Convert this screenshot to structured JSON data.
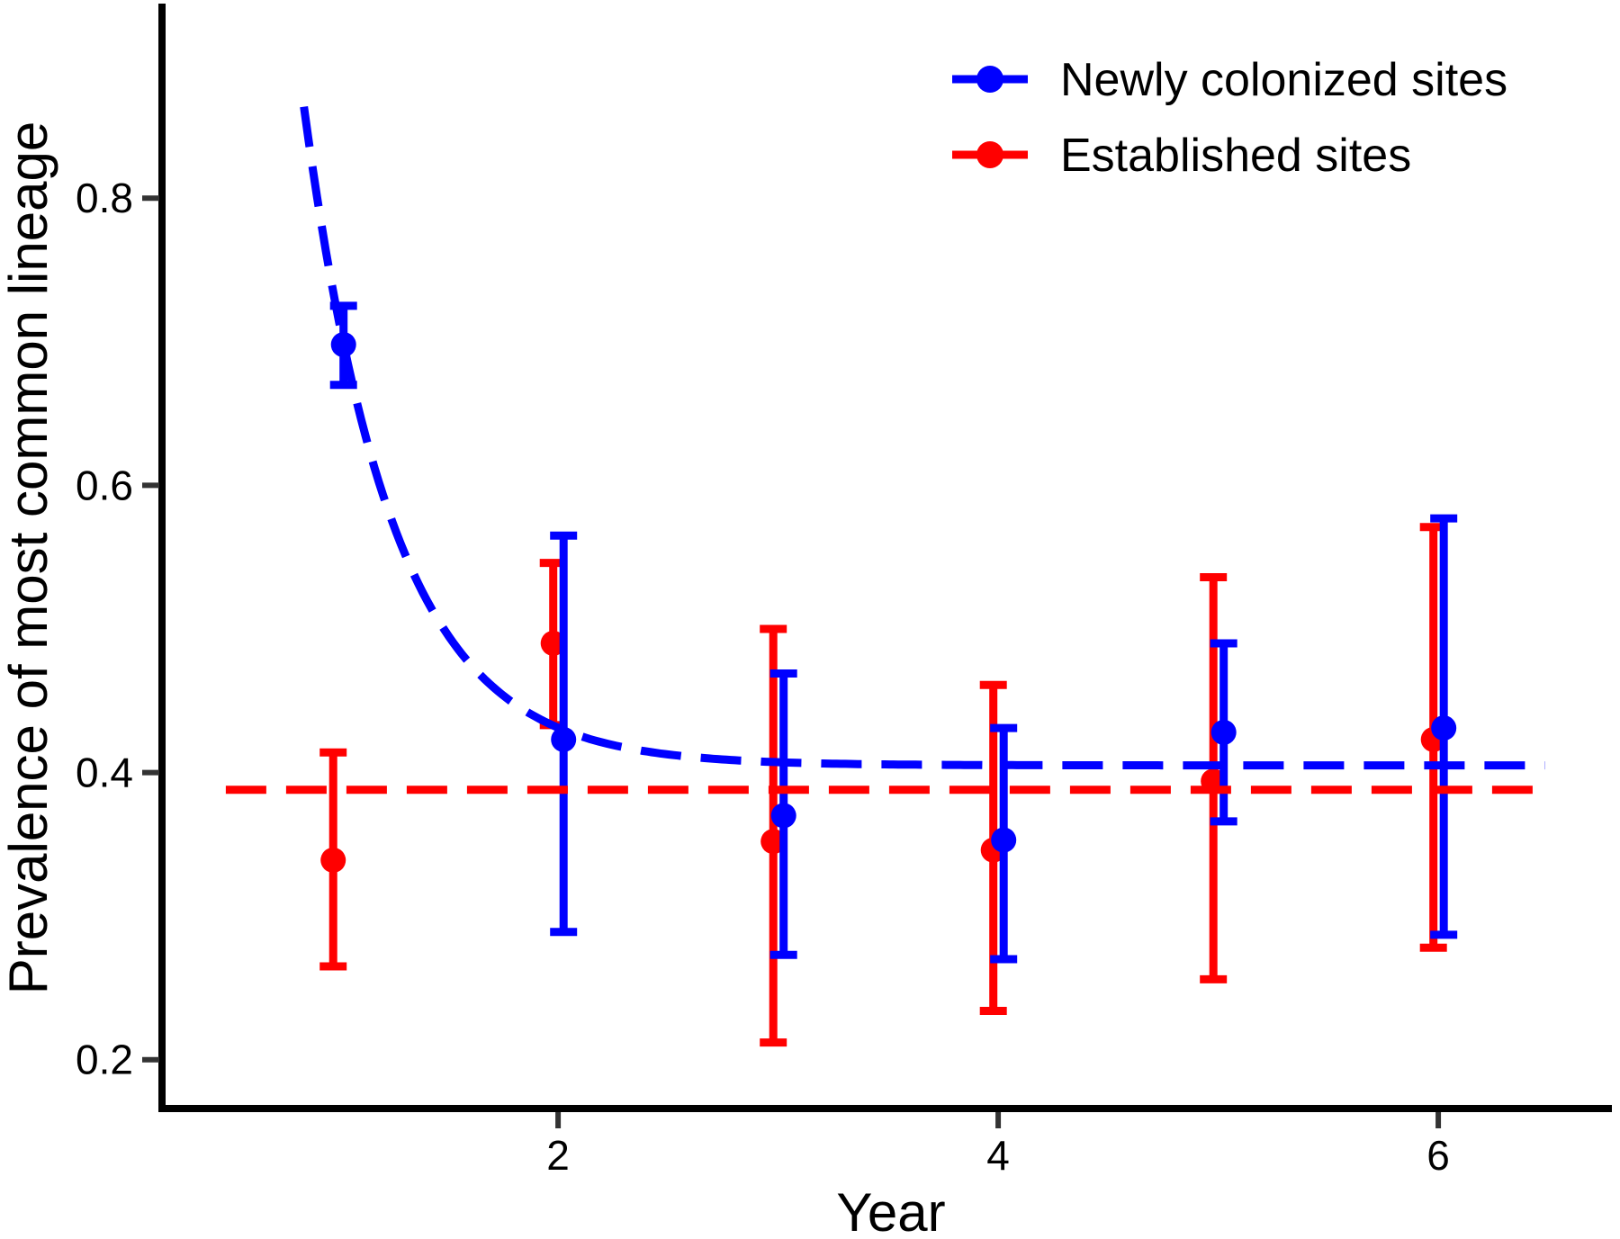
{
  "legend": {
    "position": "top-right",
    "items": [
      {
        "label": "Newly colonized sites",
        "color": "#0000FF"
      },
      {
        "label": "Established sites",
        "color": "#FF0000"
      }
    ]
  },
  "chart_data": {
    "type": "scatter",
    "title": "",
    "xlabel": "Year",
    "ylabel": "Prevalence of most common lineage",
    "x_ticks": [
      2,
      4,
      6
    ],
    "y_ticks": [
      0.2,
      0.4,
      0.6,
      0.8
    ],
    "xlim": [
      0.2,
      6.785
    ],
    "ylim": [
      0.166,
      0.933
    ],
    "grid": false,
    "legend_position": "top-right",
    "series": [
      {
        "name": "Newly colonized sites",
        "color": "#0000FF",
        "marker": "circle-with-error-bars",
        "x_dodge": 0.025,
        "points": [
          {
            "x": 1,
            "y": 0.698,
            "ymin": 0.67,
            "ymax": 0.725
          },
          {
            "x": 2,
            "y": 0.423,
            "ymin": 0.289,
            "ymax": 0.565
          },
          {
            "x": 3,
            "y": 0.37,
            "ymin": 0.273,
            "ymax": 0.469
          },
          {
            "x": 4,
            "y": 0.353,
            "ymin": 0.27,
            "ymax": 0.431
          },
          {
            "x": 5,
            "y": 0.428,
            "ymin": 0.366,
            "ymax": 0.49
          },
          {
            "x": 6,
            "y": 0.431,
            "ymin": 0.287,
            "ymax": 0.577
          }
        ],
        "trend": {
          "kind": "exponential_decay",
          "style": "dashed",
          "asymptote": 0.405,
          "amplitude": 3.72,
          "rate": 2.477,
          "x_start": 0.845,
          "x_end": 6.5
        }
      },
      {
        "name": "Established sites",
        "color": "#FF0000",
        "marker": "circle-with-error-bars",
        "x_dodge": -0.022,
        "points": [
          {
            "x": 1,
            "y": 0.339,
            "ymin": 0.265,
            "ymax": 0.414
          },
          {
            "x": 2,
            "y": 0.49,
            "ymin": 0.433,
            "ymax": 0.546
          },
          {
            "x": 3,
            "y": 0.352,
            "ymin": 0.212,
            "ymax": 0.5
          },
          {
            "x": 4,
            "y": 0.346,
            "ymin": 0.234,
            "ymax": 0.461
          },
          {
            "x": 5,
            "y": 0.394,
            "ymin": 0.256,
            "ymax": 0.536
          },
          {
            "x": 6,
            "y": 0.423,
            "ymin": 0.278,
            "ymax": 0.571
          }
        ],
        "trend": {
          "kind": "constant",
          "style": "dashed",
          "value": 0.388,
          "x_start": 0.49,
          "x_end": 6.5
        }
      }
    ]
  }
}
